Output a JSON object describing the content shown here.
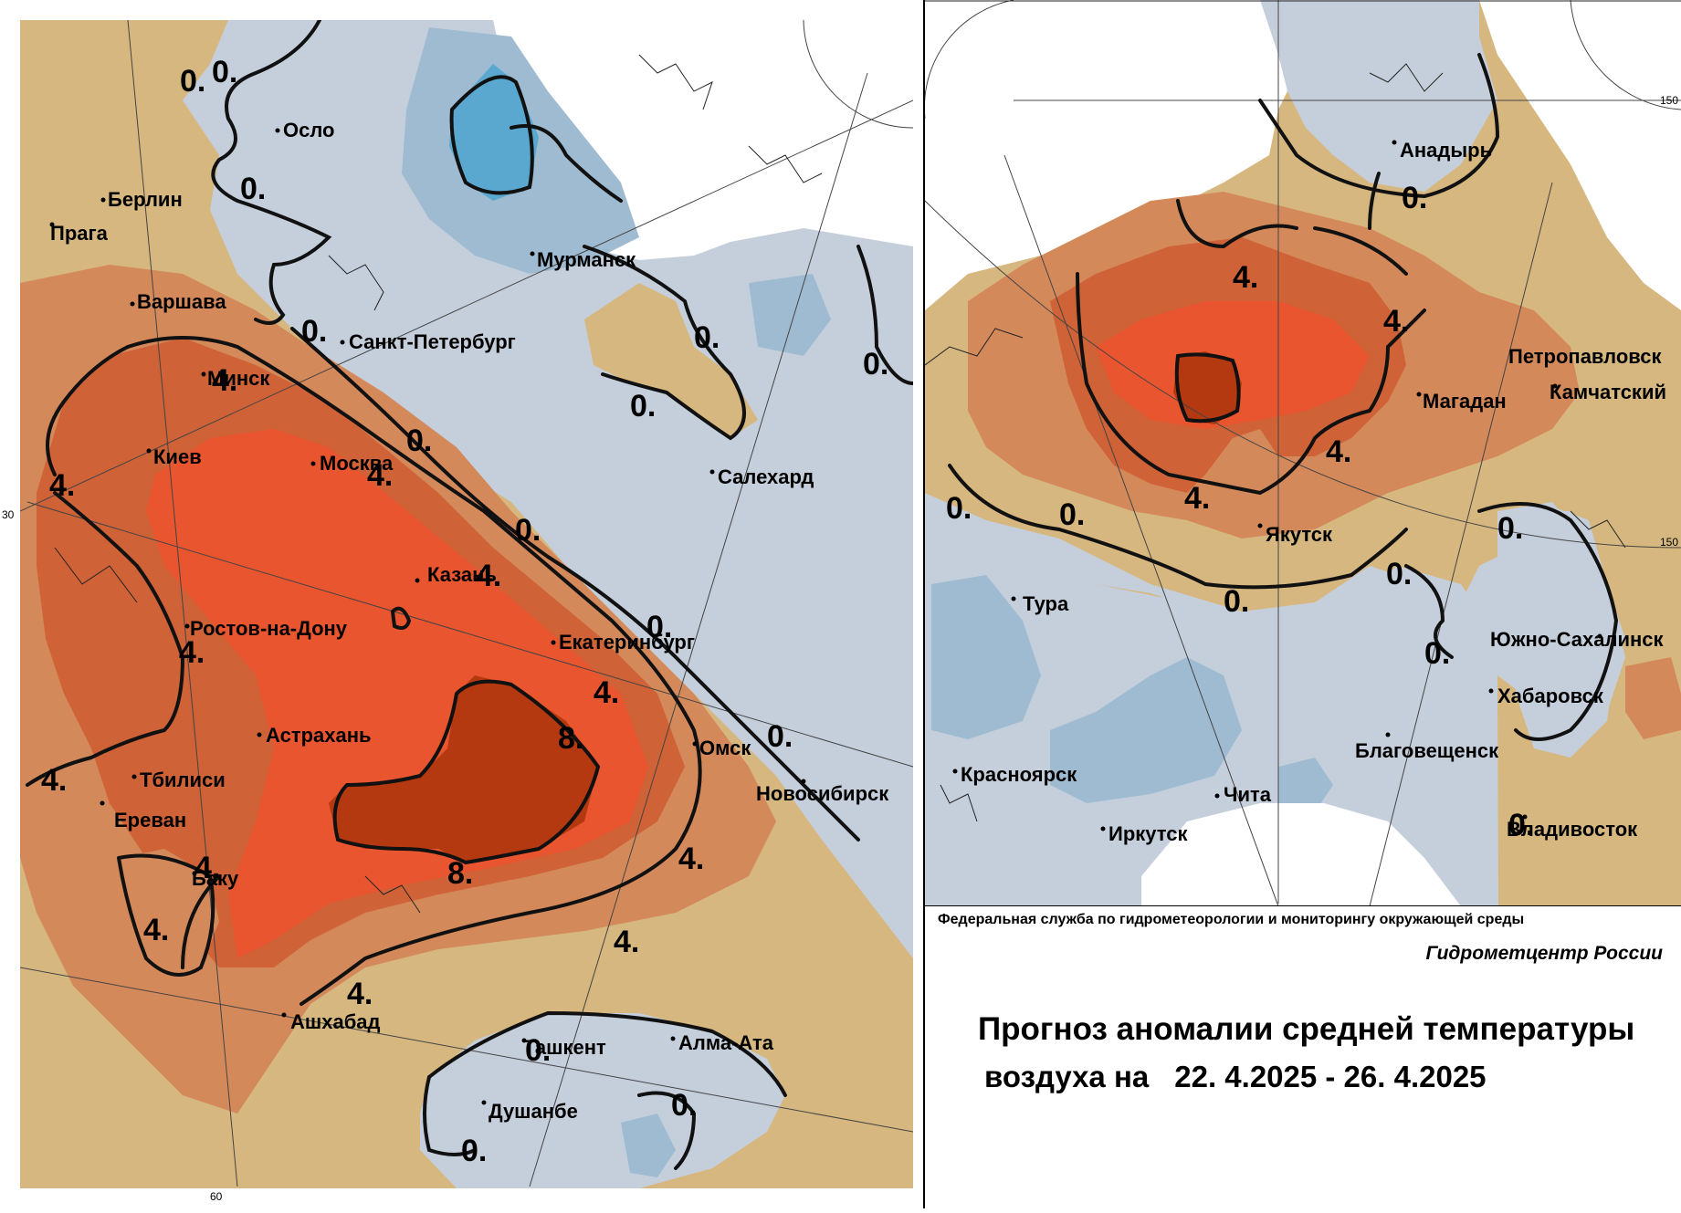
{
  "colors": {
    "ocean_white": "#ffffff",
    "cold_0_to_minus4": "#c5cfdc",
    "cold_minus2": "#9fbbd1",
    "cold_minus4": "#5aa7cf",
    "warm_0_to_2": "#d6b77f",
    "warm_2_to_4": "#d4895b",
    "warm_4_to_6": "#cf6237",
    "warm_6_to_8": "#e9552f",
    "warm_8_plus": "#b43810"
  },
  "isoline_labels": [
    "0.",
    "4.",
    "8."
  ],
  "left_map": {
    "cities": [
      "Осло",
      "Берлин",
      "Прага",
      "Варшава",
      "Мурманск",
      "Санкт-Петербург",
      "Минск",
      "Киев",
      "Москва",
      "Салехард",
      "Казань",
      "Ростов-на-Дону",
      "Екатеринбург",
      "Астрахань",
      "Омск",
      "Тбилиси",
      "Новосибирск",
      "Ереван",
      "Баку",
      "Ашхабад",
      "Ташкент",
      "Алма-Ата",
      "Душанбе"
    ],
    "grid_labels": [
      "30",
      "60"
    ]
  },
  "right_map": {
    "cities": [
      "Анадырь",
      "Петропавловск",
      "Камчатский",
      "Магадан",
      "Якутск",
      "Тура",
      "Южно-Сахалинск",
      "Хабаровск",
      "Благовещенск",
      "Красноярск",
      "Чита",
      "Иркутск",
      "Владивосток"
    ],
    "grid_labels": [
      "150",
      "150"
    ]
  },
  "info": {
    "agency": "Федеральная служба по гидрометеорологии и мониторингу окружающей среды",
    "center": "Гидрометцентр России",
    "title_line1": "Прогноз аномалии средней температуры",
    "title_line2_prefix": "воздуха на",
    "title_dates": "22. 4.2025 - 26. 4.2025"
  }
}
